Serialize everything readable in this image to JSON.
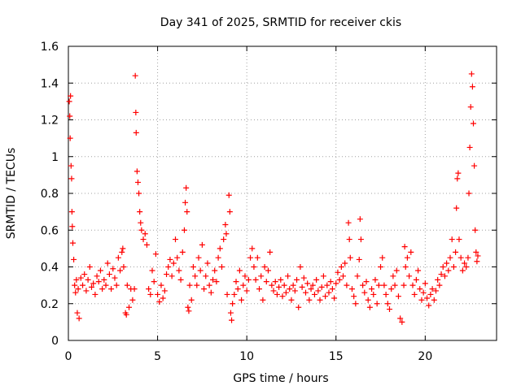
{
  "chart_data": {
    "type": "scatter",
    "title": "Day 341 of 2025, SRMTID for receiver ckis",
    "xlabel": "GPS time / hours",
    "ylabel": "SRMTID / TECUs",
    "xlim": [
      0,
      24
    ],
    "ylim": [
      0,
      1.6
    ],
    "x_ticks": [
      0,
      5,
      10,
      15,
      20
    ],
    "x_tick_labels": [
      "0",
      "5",
      "10",
      "15",
      "20"
    ],
    "y_ticks": [
      0,
      0.2,
      0.4,
      0.6,
      0.8,
      1.0,
      1.2,
      1.4,
      1.6
    ],
    "y_tick_labels": [
      "0",
      "0.2",
      "0.4",
      "0.6",
      "0.8",
      "1",
      "1.2",
      "1.4",
      "1.6"
    ],
    "grid": true,
    "marker": "plus",
    "color": "#ff0000",
    "series": [
      {
        "name": "SRMTID",
        "points": [
          [
            0.05,
            1.3
          ],
          [
            0.08,
            1.22
          ],
          [
            0.1,
            1.1
          ],
          [
            0.12,
            1.33
          ],
          [
            0.15,
            0.95
          ],
          [
            0.18,
            0.88
          ],
          [
            0.2,
            0.7
          ],
          [
            0.22,
            0.62
          ],
          [
            0.25,
            0.53
          ],
          [
            0.3,
            0.44
          ],
          [
            0.35,
            0.3
          ],
          [
            0.4,
            0.26
          ],
          [
            0.45,
            0.33
          ],
          [
            0.5,
            0.15
          ],
          [
            0.55,
            0.28
          ],
          [
            0.6,
            0.12
          ],
          [
            0.7,
            0.34
          ],
          [
            0.8,
            0.3
          ],
          [
            0.9,
            0.36
          ],
          [
            1.0,
            0.27
          ],
          [
            1.1,
            0.33
          ],
          [
            1.2,
            0.4
          ],
          [
            1.3,
            0.29
          ],
          [
            1.4,
            0.31
          ],
          [
            1.5,
            0.25
          ],
          [
            1.6,
            0.35
          ],
          [
            1.7,
            0.32
          ],
          [
            1.8,
            0.38
          ],
          [
            1.9,
            0.28
          ],
          [
            2.0,
            0.33
          ],
          [
            2.1,
            0.3
          ],
          [
            2.2,
            0.42
          ],
          [
            2.3,
            0.36
          ],
          [
            2.4,
            0.28
          ],
          [
            2.5,
            0.39
          ],
          [
            2.6,
            0.34
          ],
          [
            2.7,
            0.3
          ],
          [
            2.8,
            0.45
          ],
          [
            2.9,
            0.38
          ],
          [
            3.0,
            0.48
          ],
          [
            3.05,
            0.5
          ],
          [
            3.1,
            0.4
          ],
          [
            3.2,
            0.15
          ],
          [
            3.25,
            0.14
          ],
          [
            3.3,
            0.3
          ],
          [
            3.4,
            0.18
          ],
          [
            3.5,
            0.28
          ],
          [
            3.6,
            0.22
          ],
          [
            3.7,
            0.28
          ],
          [
            3.75,
            1.44
          ],
          [
            3.78,
            1.24
          ],
          [
            3.8,
            1.13
          ],
          [
            3.85,
            0.92
          ],
          [
            3.9,
            0.86
          ],
          [
            3.95,
            0.8
          ],
          [
            4.0,
            0.7
          ],
          [
            4.05,
            0.64
          ],
          [
            4.1,
            0.6
          ],
          [
            4.2,
            0.55
          ],
          [
            4.3,
            0.58
          ],
          [
            4.4,
            0.52
          ],
          [
            4.5,
            0.28
          ],
          [
            4.6,
            0.25
          ],
          [
            4.7,
            0.38
          ],
          [
            4.8,
            0.32
          ],
          [
            4.9,
            0.47
          ],
          [
            5.0,
            0.25
          ],
          [
            5.1,
            0.21
          ],
          [
            5.2,
            0.3
          ],
          [
            5.3,
            0.23
          ],
          [
            5.4,
            0.27
          ],
          [
            5.5,
            0.36
          ],
          [
            5.6,
            0.4
          ],
          [
            5.7,
            0.44
          ],
          [
            5.8,
            0.35
          ],
          [
            5.9,
            0.42
          ],
          [
            6.0,
            0.55
          ],
          [
            6.1,
            0.45
          ],
          [
            6.2,
            0.38
          ],
          [
            6.3,
            0.33
          ],
          [
            6.4,
            0.48
          ],
          [
            6.5,
            0.6
          ],
          [
            6.55,
            0.75
          ],
          [
            6.6,
            0.83
          ],
          [
            6.65,
            0.7
          ],
          [
            6.7,
            0.18
          ],
          [
            6.75,
            0.16
          ],
          [
            6.8,
            0.3
          ],
          [
            6.9,
            0.22
          ],
          [
            7.0,
            0.4
          ],
          [
            7.1,
            0.35
          ],
          [
            7.2,
            0.3
          ],
          [
            7.3,
            0.45
          ],
          [
            7.4,
            0.38
          ],
          [
            7.5,
            0.52
          ],
          [
            7.6,
            0.28
          ],
          [
            7.7,
            0.35
          ],
          [
            7.8,
            0.42
          ],
          [
            7.9,
            0.3
          ],
          [
            8.0,
            0.26
          ],
          [
            8.1,
            0.33
          ],
          [
            8.2,
            0.38
          ],
          [
            8.3,
            0.32
          ],
          [
            8.4,
            0.45
          ],
          [
            8.5,
            0.5
          ],
          [
            8.6,
            0.4
          ],
          [
            8.7,
            0.55
          ],
          [
            8.8,
            0.63
          ],
          [
            8.85,
            0.58
          ],
          [
            8.9,
            0.25
          ],
          [
            9.0,
            0.79
          ],
          [
            9.05,
            0.7
          ],
          [
            9.1,
            0.15
          ],
          [
            9.15,
            0.11
          ],
          [
            9.2,
            0.2
          ],
          [
            9.3,
            0.25
          ],
          [
            9.4,
            0.32
          ],
          [
            9.5,
            0.28
          ],
          [
            9.6,
            0.38
          ],
          [
            9.7,
            0.22
          ],
          [
            9.8,
            0.3
          ],
          [
            9.9,
            0.35
          ],
          [
            10.0,
            0.27
          ],
          [
            10.1,
            0.33
          ],
          [
            10.2,
            0.45
          ],
          [
            10.3,
            0.5
          ],
          [
            10.4,
            0.4
          ],
          [
            10.5,
            0.33
          ],
          [
            10.6,
            0.45
          ],
          [
            10.7,
            0.28
          ],
          [
            10.8,
            0.35
          ],
          [
            10.9,
            0.22
          ],
          [
            11.0,
            0.4
          ],
          [
            11.1,
            0.32
          ],
          [
            11.2,
            0.38
          ],
          [
            11.3,
            0.48
          ],
          [
            11.4,
            0.3
          ],
          [
            11.5,
            0.27
          ],
          [
            11.6,
            0.32
          ],
          [
            11.7,
            0.25
          ],
          [
            11.8,
            0.29
          ],
          [
            11.9,
            0.33
          ],
          [
            12.0,
            0.24
          ],
          [
            12.1,
            0.3
          ],
          [
            12.2,
            0.26
          ],
          [
            12.3,
            0.35
          ],
          [
            12.4,
            0.28
          ],
          [
            12.5,
            0.22
          ],
          [
            12.6,
            0.3
          ],
          [
            12.7,
            0.27
          ],
          [
            12.8,
            0.33
          ],
          [
            12.9,
            0.18
          ],
          [
            13.0,
            0.4
          ],
          [
            13.1,
            0.29
          ],
          [
            13.2,
            0.34
          ],
          [
            13.3,
            0.26
          ],
          [
            13.4,
            0.31
          ],
          [
            13.5,
            0.22
          ],
          [
            13.6,
            0.28
          ],
          [
            13.7,
            0.3
          ],
          [
            13.8,
            0.25
          ],
          [
            13.9,
            0.33
          ],
          [
            14.0,
            0.27
          ],
          [
            14.1,
            0.22
          ],
          [
            14.2,
            0.29
          ],
          [
            14.3,
            0.35
          ],
          [
            14.4,
            0.24
          ],
          [
            14.5,
            0.3
          ],
          [
            14.6,
            0.26
          ],
          [
            14.7,
            0.32
          ],
          [
            14.8,
            0.28
          ],
          [
            14.9,
            0.23
          ],
          [
            15.0,
            0.31
          ],
          [
            15.1,
            0.37
          ],
          [
            15.2,
            0.33
          ],
          [
            15.3,
            0.4
          ],
          [
            15.4,
            0.35
          ],
          [
            15.5,
            0.42
          ],
          [
            15.6,
            0.3
          ],
          [
            15.7,
            0.64
          ],
          [
            15.75,
            0.55
          ],
          [
            15.8,
            0.45
          ],
          [
            15.9,
            0.28
          ],
          [
            16.0,
            0.24
          ],
          [
            16.1,
            0.2
          ],
          [
            16.2,
            0.35
          ],
          [
            16.3,
            0.44
          ],
          [
            16.35,
            0.66
          ],
          [
            16.4,
            0.55
          ],
          [
            16.5,
            0.3
          ],
          [
            16.6,
            0.26
          ],
          [
            16.7,
            0.32
          ],
          [
            16.8,
            0.22
          ],
          [
            16.9,
            0.18
          ],
          [
            17.0,
            0.28
          ],
          [
            17.1,
            0.25
          ],
          [
            17.2,
            0.33
          ],
          [
            17.3,
            0.2
          ],
          [
            17.4,
            0.3
          ],
          [
            17.5,
            0.4
          ],
          [
            17.6,
            0.45
          ],
          [
            17.7,
            0.3
          ],
          [
            17.8,
            0.25
          ],
          [
            17.9,
            0.2
          ],
          [
            18.0,
            0.17
          ],
          [
            18.1,
            0.28
          ],
          [
            18.2,
            0.35
          ],
          [
            18.3,
            0.3
          ],
          [
            18.4,
            0.38
          ],
          [
            18.5,
            0.24
          ],
          [
            18.6,
            0.12
          ],
          [
            18.7,
            0.1
          ],
          [
            18.8,
            0.3
          ],
          [
            18.85,
            0.51
          ],
          [
            18.9,
            0.4
          ],
          [
            19.0,
            0.45
          ],
          [
            19.1,
            0.35
          ],
          [
            19.2,
            0.48
          ],
          [
            19.3,
            0.3
          ],
          [
            19.4,
            0.25
          ],
          [
            19.5,
            0.33
          ],
          [
            19.6,
            0.38
          ],
          [
            19.7,
            0.28
          ],
          [
            19.8,
            0.22
          ],
          [
            19.9,
            0.26
          ],
          [
            20.0,
            0.31
          ],
          [
            20.1,
            0.23
          ],
          [
            20.2,
            0.19
          ],
          [
            20.3,
            0.25
          ],
          [
            20.4,
            0.28
          ],
          [
            20.5,
            0.22
          ],
          [
            20.6,
            0.27
          ],
          [
            20.7,
            0.33
          ],
          [
            20.8,
            0.3
          ],
          [
            20.9,
            0.36
          ],
          [
            21.0,
            0.4
          ],
          [
            21.1,
            0.35
          ],
          [
            21.2,
            0.42
          ],
          [
            21.3,
            0.38
          ],
          [
            21.4,
            0.45
          ],
          [
            21.5,
            0.55
          ],
          [
            21.6,
            0.4
          ],
          [
            21.7,
            0.48
          ],
          [
            21.75,
            0.72
          ],
          [
            21.8,
            0.88
          ],
          [
            21.85,
            0.91
          ],
          [
            21.9,
            0.55
          ],
          [
            22.0,
            0.45
          ],
          [
            22.1,
            0.38
          ],
          [
            22.2,
            0.42
          ],
          [
            22.3,
            0.4
          ],
          [
            22.4,
            0.45
          ],
          [
            22.45,
            0.8
          ],
          [
            22.5,
            1.05
          ],
          [
            22.55,
            1.27
          ],
          [
            22.6,
            1.45
          ],
          [
            22.65,
            1.38
          ],
          [
            22.7,
            1.18
          ],
          [
            22.75,
            0.95
          ],
          [
            22.8,
            0.6
          ],
          [
            22.85,
            0.48
          ],
          [
            22.9,
            0.43
          ],
          [
            22.95,
            0.46
          ]
        ]
      }
    ]
  }
}
